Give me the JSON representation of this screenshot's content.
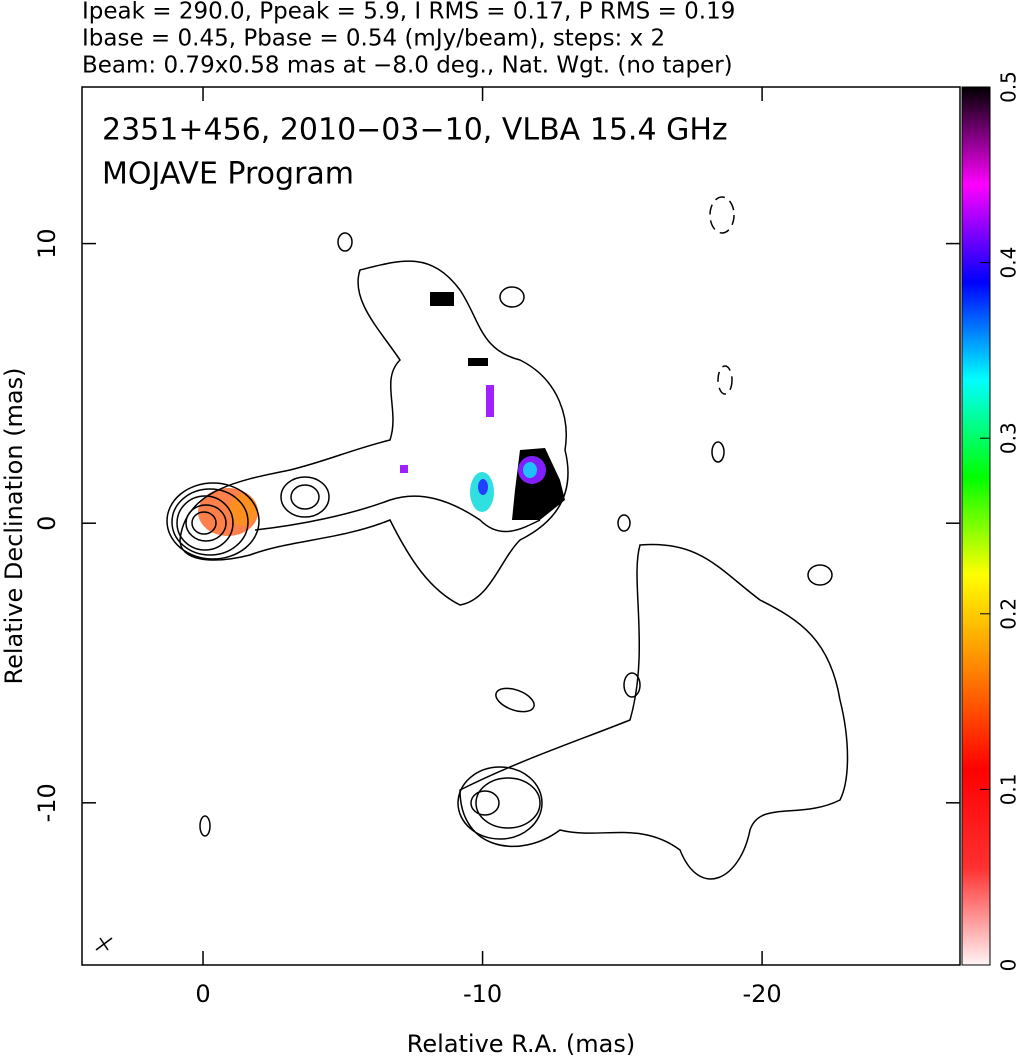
{
  "chart_data": {
    "type": "image",
    "title_lines": [
      "Ipeak = 290.0, Ppeak = 5.9, I RMS = 0.17, P RMS = 0.19",
      "Ibase = 0.45, Pbase = 0.54 (mJy/beam), steps: x 2",
      "Beam: 0.79x0.58 mas at −8.0 deg., Nat. Wgt. (no taper)"
    ],
    "annotations": [
      "2351+456, 2010−03−10, VLBA 15.4 GHz",
      "MOJAVE Program"
    ],
    "x_label": "Relative R.A. (mas)",
    "y_label": "Relative Declination (mas)",
    "xlim": [
      4.33,
      -27.08
    ],
    "xticks": [
      0,
      -10,
      -20
    ],
    "ylim": [
      -15.8,
      15.6
    ],
    "yticks": [
      -10,
      0,
      10
    ],
    "colorbar": {
      "lim": [
        0,
        0.5
      ],
      "ticks": [
        0,
        0.1,
        0.2,
        0.3,
        0.4,
        0.5
      ],
      "colors": [
        "#fff4f4",
        "#ff3030",
        "#ff0000",
        "#ff8000",
        "#ffff00",
        "#00ff00",
        "#00ffff",
        "#0000ff",
        "#ff00ff",
        "#000000"
      ]
    }
  }
}
